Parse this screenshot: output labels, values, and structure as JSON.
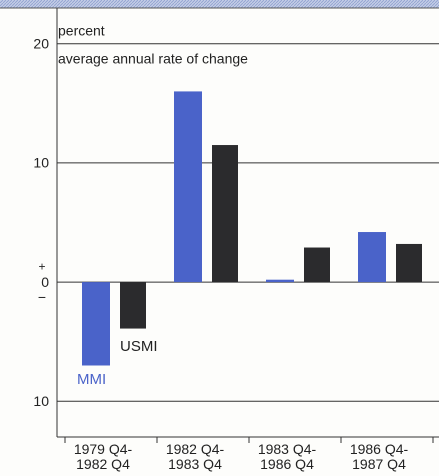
{
  "chart_data": {
    "type": "bar",
    "y_label_top": "percent",
    "y_label": "average annual rate of change",
    "categories": [
      "1979 Q4-\n1982 Q4",
      "1982 Q4-\n1983 Q4",
      "1983 Q4-\n1986 Q4",
      "1986 Q4-\n1987 Q4"
    ],
    "series": [
      {
        "name": "MMI",
        "color": "#4a63c9",
        "values": [
          -7,
          16,
          0.2,
          4.2
        ]
      },
      {
        "name": "USMI",
        "color": "#2b2b2d",
        "values": [
          -3.9,
          11.5,
          2.9,
          3.2
        ]
      }
    ],
    "ylim": [
      -13,
      23
    ],
    "yticks": [
      {
        "value": -10,
        "label": "10"
      },
      0,
      10,
      20
    ],
    "zero_signs": [
      "+",
      "−"
    ],
    "grid": true
  }
}
